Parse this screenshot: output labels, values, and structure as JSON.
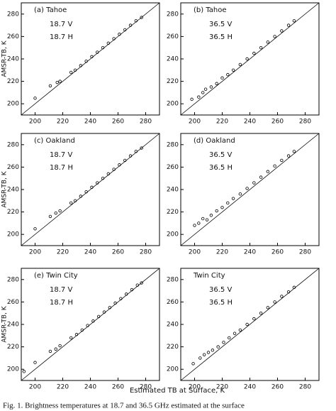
{
  "chart_data": [
    {
      "type": "scatter",
      "panel_label": "(a) Tahoe",
      "annotations": [
        "18.7 V",
        "18.7 H"
      ],
      "ylabel": "AMSR-TB, K",
      "x": [
        200,
        211,
        216,
        218,
        226,
        229,
        233,
        237,
        241,
        245,
        249,
        253,
        257,
        261,
        265,
        269,
        273,
        277
      ],
      "y": [
        205,
        216,
        219,
        220,
        228,
        230,
        234,
        238,
        242,
        246,
        250,
        254,
        258,
        262,
        266,
        270,
        274,
        277
      ],
      "xlim": [
        190,
        290
      ],
      "ylim": [
        190,
        290
      ],
      "xticks": [
        200,
        220,
        240,
        260,
        280
      ],
      "yticks": [
        200,
        220,
        240,
        260,
        280
      ],
      "color": "#000000"
    },
    {
      "type": "scatter",
      "panel_label": "(b) Tahoe",
      "annotations": [
        "36.5 V",
        "36.5 H"
      ],
      "x": [
        198,
        203,
        206,
        208,
        212,
        216,
        220,
        224,
        228,
        233,
        238,
        243,
        248,
        253,
        258,
        263,
        268,
        272
      ],
      "y": [
        204,
        206,
        210,
        213,
        215,
        218,
        223,
        226,
        230,
        235,
        240,
        245,
        250,
        255,
        260,
        265,
        270,
        274
      ],
      "xlim": [
        190,
        290
      ],
      "ylim": [
        190,
        290
      ],
      "xticks": [
        200,
        220,
        240,
        260,
        280
      ],
      "yticks": [
        200,
        220,
        240,
        260,
        280
      ],
      "color": "#000000"
    },
    {
      "type": "scatter",
      "panel_label": "(c) Oakland",
      "annotations": [
        "18.7 V",
        "18.7 H"
      ],
      "ylabel": "AMSR-TB, K",
      "x": [
        200,
        211,
        215,
        218,
        226,
        229,
        233,
        237,
        241,
        245,
        249,
        253,
        257,
        261,
        265,
        269,
        273,
        277
      ],
      "y": [
        205,
        216,
        219,
        221,
        228,
        230,
        234,
        238,
        242,
        246,
        250,
        254,
        258,
        262,
        266,
        270,
        274,
        277
      ],
      "xlim": [
        190,
        290
      ],
      "ylim": [
        190,
        290
      ],
      "xticks": [
        200,
        220,
        240,
        260,
        280
      ],
      "yticks": [
        200,
        220,
        240,
        260,
        280
      ],
      "color": "#000000"
    },
    {
      "type": "scatter",
      "panel_label": "(d) Oakland",
      "annotations": [
        "36.5 V",
        "36.5 H"
      ],
      "x": [
        200,
        203,
        206,
        209,
        212,
        216,
        220,
        224,
        228,
        233,
        238,
        243,
        248,
        253,
        258,
        263,
        268,
        272
      ],
      "y": [
        208,
        210,
        214,
        213,
        217,
        221,
        224,
        228,
        232,
        236,
        241,
        246,
        251,
        256,
        261,
        266,
        270,
        274
      ],
      "xlim": [
        190,
        290
      ],
      "ylim": [
        190,
        290
      ],
      "xticks": [
        200,
        220,
        240,
        260,
        280
      ],
      "yticks": [
        200,
        220,
        240,
        260,
        280
      ],
      "color": "#000000"
    },
    {
      "type": "scatter",
      "panel_label": "(e) Twin City",
      "annotations": [
        "18.7 V",
        "18.7 H"
      ],
      "ylabel": "AMSR-TB, K",
      "x": [
        192,
        200,
        211,
        215,
        218,
        226,
        230,
        234,
        238,
        242,
        246,
        250,
        254,
        258,
        262,
        266,
        270,
        274,
        277
      ],
      "y": [
        198,
        206,
        216,
        218,
        221,
        228,
        231,
        235,
        239,
        243,
        247,
        251,
        255,
        259,
        263,
        267,
        271,
        275,
        277
      ],
      "xlim": [
        190,
        290
      ],
      "ylim": [
        190,
        290
      ],
      "xticks": [
        200,
        220,
        240,
        260,
        280
      ],
      "yticks": [
        200,
        220,
        240,
        260,
        280
      ],
      "color": "#000000"
    },
    {
      "type": "scatter",
      "panel_label": "Twin City",
      "annotations": [
        "36.5 V",
        "36.5 H"
      ],
      "x": [
        199,
        204,
        207,
        210,
        213,
        217,
        221,
        225,
        229,
        233,
        238,
        243,
        248,
        253,
        258,
        263,
        268,
        272
      ],
      "y": [
        205,
        210,
        213,
        215,
        217,
        220,
        224,
        228,
        232,
        235,
        240,
        245,
        250,
        255,
        260,
        265,
        269,
        273
      ],
      "xlim": [
        190,
        290
      ],
      "ylim": [
        190,
        290
      ],
      "xticks": [
        200,
        220,
        240,
        260,
        280
      ],
      "yticks": [
        200,
        220,
        240,
        260,
        280
      ],
      "color": "#000000"
    }
  ],
  "figure_xlabel": "Estimated TB at Surface, K",
  "caption": "Fig. 1.  Brightness temperatures at 18.7 and 36.5 GHz estimated at the surface"
}
